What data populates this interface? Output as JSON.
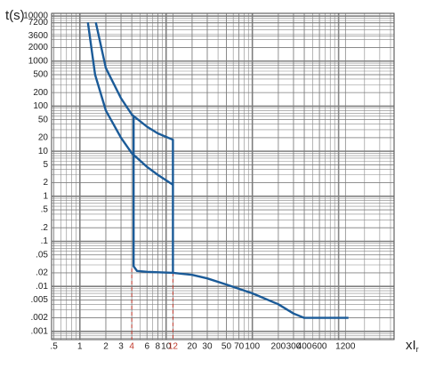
{
  "chart_data": {
    "type": "line",
    "y_label": "t(s)",
    "x_label": "xI",
    "x_label_sub": "r",
    "log_x": true,
    "log_y": true,
    "grid": true,
    "xlim": [
      0.47,
      4400
    ],
    "ylim": [
      0.00066,
      11500
    ],
    "xticks": [
      {
        "value": 0.5,
        "label": ".5"
      },
      1,
      2,
      3,
      4,
      6,
      8,
      10,
      12,
      20,
      30,
      50,
      70,
      100,
      200,
      300,
      400,
      600,
      1200
    ],
    "yticks": [
      10000,
      7200,
      3600,
      2000,
      1000,
      500,
      200,
      100,
      50,
      20,
      10,
      5,
      2,
      1,
      {
        "value": 0.5,
        "label": ".5"
      },
      {
        "value": 0.2,
        "label": ".2"
      },
      {
        "value": 0.1,
        "label": ".1"
      },
      {
        "value": 0.05,
        "label": ".05"
      },
      {
        "value": 0.02,
        "label": ".02"
      },
      {
        "value": 0.01,
        "label": ".01"
      },
      {
        "value": 0.005,
        "label": ".005"
      },
      {
        "value": 0.002,
        "label": ".002"
      },
      {
        "value": 0.001,
        "label": ".001"
      }
    ],
    "series": [
      {
        "color": "#1b5b98",
        "x": [
          1.53,
          2,
          3,
          4,
          6,
          8,
          12,
          12,
          20,
          30,
          50,
          100,
          200,
          300,
          400,
          600,
          1200,
          1300
        ],
        "values": [
          7200,
          700,
          150,
          65,
          35,
          25,
          18,
          0.02,
          0.018,
          0.015,
          0.011,
          0.007,
          0.004,
          0.0025,
          0.002,
          0.002,
          0.002,
          0.002
        ]
      },
      {
        "color": "#1b5b98",
        "x": [
          1.24,
          1.5,
          2,
          3,
          4,
          6,
          8,
          12
        ],
        "values": [
          7200,
          500,
          80,
          20,
          9,
          4.5,
          3,
          1.8
        ]
      },
      {
        "color": "#1b5b98",
        "x": [
          4.2,
          4.2,
          4.6,
          6,
          12
        ],
        "values": [
          60,
          0.028,
          0.022,
          0.021,
          0.02
        ]
      }
    ],
    "markers": [
      {
        "x": 4,
        "y": 0.025
      },
      {
        "x": 12,
        "y": 0.02
      }
    ],
    "marker_color": "#c0392b"
  }
}
